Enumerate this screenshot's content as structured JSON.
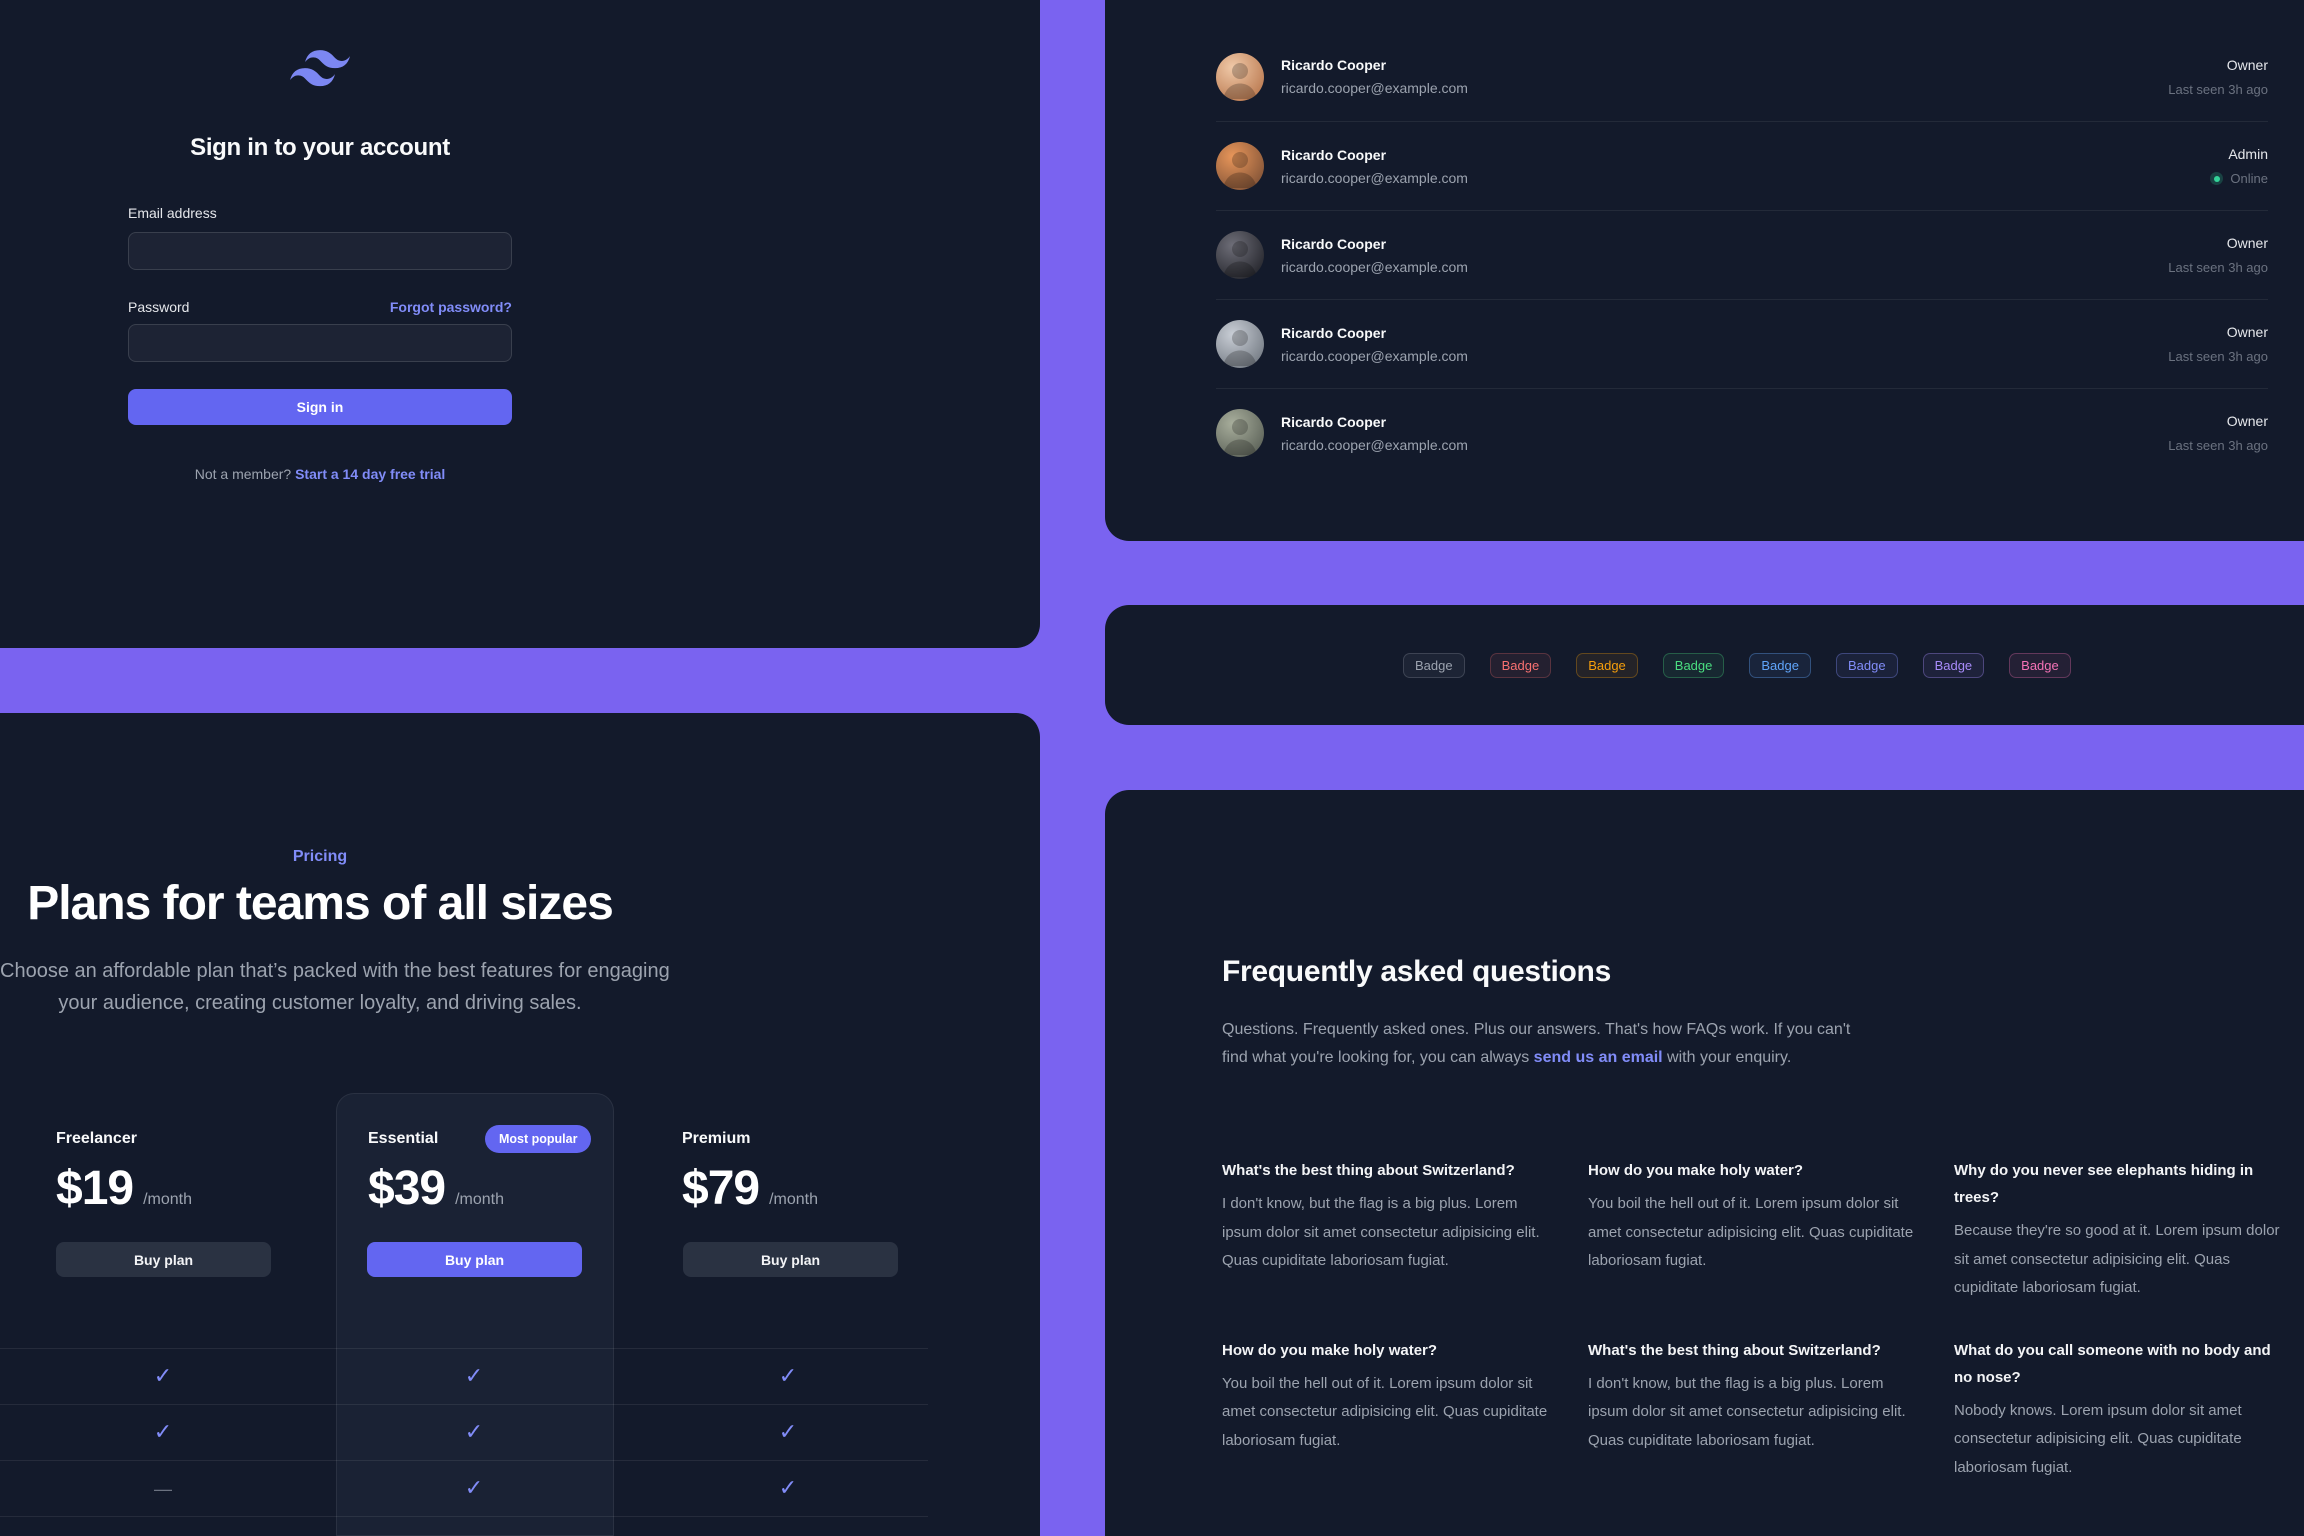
{
  "theme": {
    "background_purple": "#7A63F0",
    "panel_dark": "#131A2B",
    "accent_indigo": "#6366F1",
    "link_indigo": "#818CF8",
    "check_color": "#818CF8",
    "online_green": "#34D399"
  },
  "signin": {
    "logo_icon": "tailwind-logomark",
    "logo_color": "#7C87F2",
    "title": "Sign in to your account",
    "email_label": "Email address",
    "email_value": "",
    "password_label": "Password",
    "password_value": "",
    "forgot_link": "Forgot password?",
    "submit_label": "Sign in",
    "footer_text": "Not a member?",
    "footer_link": "Start a 14 day free trial"
  },
  "team": {
    "users": [
      {
        "name": "Ricardo Cooper",
        "email": "ricardo.cooper@example.com",
        "role": "Owner",
        "status": "Last seen 3h ago",
        "online": false,
        "avatar_colors": [
          "#F0C9A8",
          "#B06A3F"
        ]
      },
      {
        "name": "Ricardo Cooper",
        "email": "ricardo.cooper@example.com",
        "role": "Admin",
        "status": "Online",
        "online": true,
        "avatar_colors": [
          "#E8965A",
          "#6E4630"
        ]
      },
      {
        "name": "Ricardo Cooper",
        "email": "ricardo.cooper@example.com",
        "role": "Owner",
        "status": "Last seen 3h ago",
        "online": false,
        "avatar_colors": [
          "#6E6E78",
          "#17181E"
        ]
      },
      {
        "name": "Ricardo Cooper",
        "email": "ricardo.cooper@example.com",
        "role": "Owner",
        "status": "Last seen 3h ago",
        "online": false,
        "avatar_colors": [
          "#C9CED6",
          "#646B74"
        ]
      },
      {
        "name": "Ricardo Cooper",
        "email": "ricardo.cooper@example.com",
        "role": "Owner",
        "status": "Last seen 3h ago",
        "online": false,
        "avatar_colors": [
          "#A8AE9C",
          "#4E544C"
        ]
      }
    ]
  },
  "badges": {
    "label": "Badge",
    "variants": [
      {
        "name": "gray",
        "text": "#9CA3AF",
        "border": "rgba(156,163,175,.25)",
        "bg": "rgba(156,163,175,.08)"
      },
      {
        "name": "red",
        "text": "#F87171",
        "border": "rgba(248,113,113,.25)",
        "bg": "rgba(248,113,113,.08)"
      },
      {
        "name": "yellow",
        "text": "#F59E0B",
        "border": "rgba(245,158,11,.3)",
        "bg": "rgba(245,158,11,.08)"
      },
      {
        "name": "green",
        "text": "#4ADE80",
        "border": "rgba(74,222,128,.3)",
        "bg": "rgba(74,222,128,.08)"
      },
      {
        "name": "blue",
        "text": "#60A5FA",
        "border": "rgba(96,165,250,.35)",
        "bg": "rgba(96,165,250,.08)"
      },
      {
        "name": "indigo",
        "text": "#818CF8",
        "border": "rgba(129,140,248,.35)",
        "bg": "rgba(129,140,248,.08)"
      },
      {
        "name": "purple",
        "text": "#A78BFA",
        "border": "rgba(167,139,250,.35)",
        "bg": "rgba(167,139,250,.08)"
      },
      {
        "name": "pink",
        "text": "#F472B6",
        "border": "rgba(244,114,182,.3)",
        "bg": "rgba(244,114,182,.08)"
      }
    ]
  },
  "pricing": {
    "eyebrow": "Pricing",
    "title": "Plans for teams of all sizes",
    "subtitle_line1": "Choose an affordable plan that’s packed with the best features for engaging",
    "subtitle_line2": "your audience, creating customer loyalty, and driving sales.",
    "most_popular_label": "Most popular",
    "cta_label": "Buy plan",
    "plans": [
      {
        "name": "Freelancer",
        "amount": "$19",
        "period": "/month",
        "featured": false
      },
      {
        "name": "Essential",
        "amount": "$39",
        "period": "/month",
        "featured": true
      },
      {
        "name": "Premium",
        "amount": "$79",
        "period": "/month",
        "featured": false
      }
    ],
    "comparison_rows": [
      [
        "check",
        "check",
        "check"
      ],
      [
        "check",
        "check",
        "check"
      ],
      [
        "dash",
        "check",
        "check"
      ]
    ]
  },
  "faq": {
    "title": "Frequently asked questions",
    "intro_line1": "Questions. Frequently asked ones. Plus our answers. That's how FAQs work. If you can't",
    "intro_line2_pre": "find what you're looking for, you can always ",
    "intro_link": "send us an email",
    "intro_line2_post": " with your enquiry.",
    "items": [
      {
        "q": "What's the best thing about Switzerland?",
        "a": "I don't know, but the flag is a big plus. Lorem ipsum dolor sit amet consectetur adipisicing elit. Quas cupiditate laboriosam fugiat."
      },
      {
        "q": "How do you make holy water?",
        "a": "You boil the hell out of it. Lorem ipsum dolor sit amet consectetur adipisicing elit. Quas cupiditate laboriosam fugiat."
      },
      {
        "q": "Why do you never see elephants hiding in trees?",
        "a": "Because they're so good at it. Lorem ipsum dolor sit amet consectetur adipisicing elit. Quas cupiditate laboriosam fugiat."
      },
      {
        "q": "How do you make holy water?",
        "a": "You boil the hell out of it. Lorem ipsum dolor sit amet consectetur adipisicing elit. Quas cupiditate laboriosam fugiat."
      },
      {
        "q": "What's the best thing about Switzerland?",
        "a": "I don't know, but the flag is a big plus. Lorem ipsum dolor sit amet consectetur adipisicing elit. Quas cupiditate laboriosam fugiat."
      },
      {
        "q": "What do you call someone with no body and no nose?",
        "a": "Nobody knows. Lorem ipsum dolor sit amet consectetur adipisicing elit. Quas cupiditate laboriosam fugiat."
      }
    ]
  }
}
